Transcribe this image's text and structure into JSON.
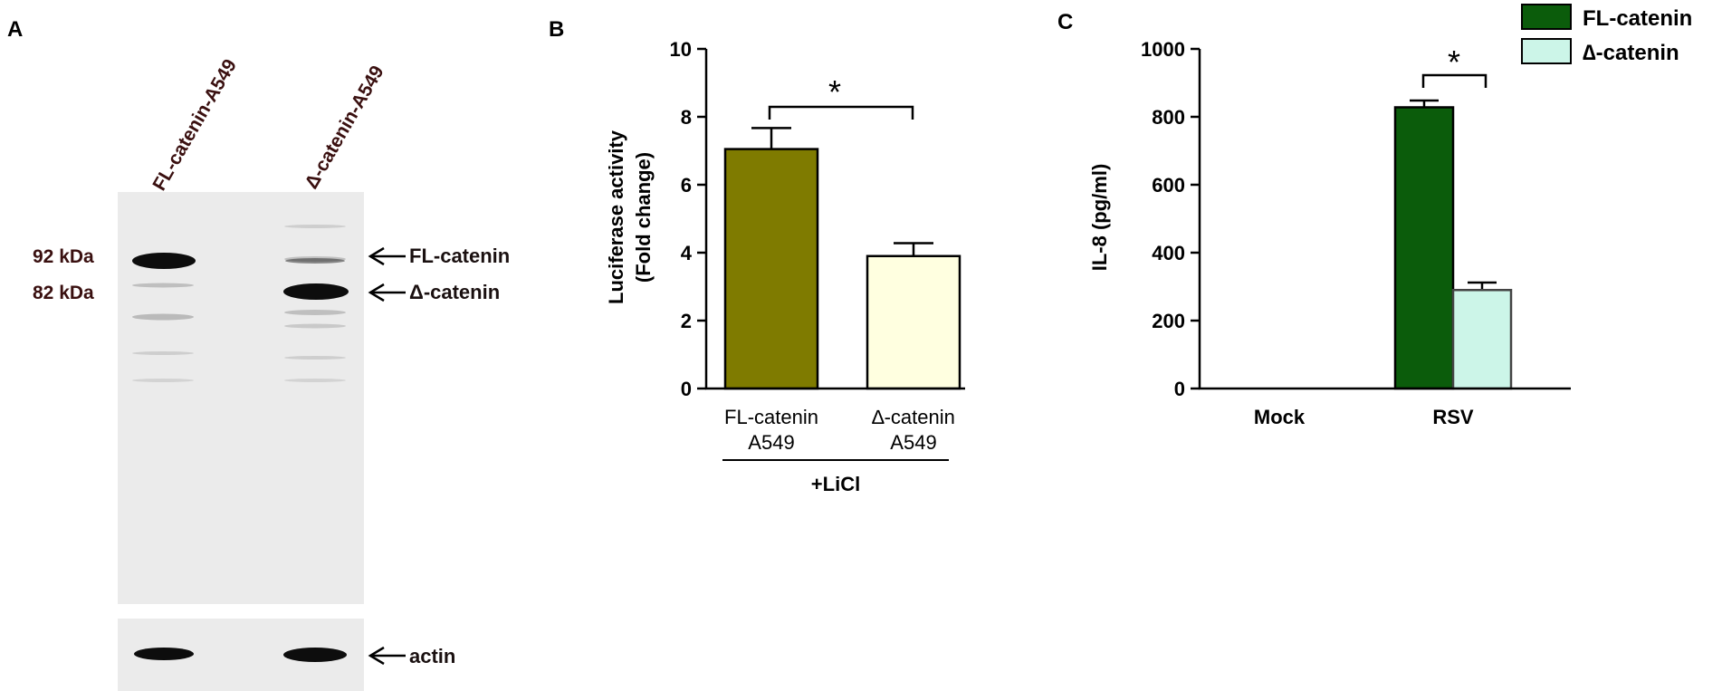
{
  "panel_labels": {
    "a": "A",
    "b": "B",
    "c": "C"
  },
  "western_blot": {
    "lane_labels": [
      "FL-catenin-A549",
      "Δ-catenin-A549"
    ],
    "markers": [
      "92 kDa",
      "82 kDa"
    ],
    "band_labels": [
      "FL-catenin",
      "Δ-catenin"
    ],
    "loading_control_label": "actin",
    "colors": {
      "membrane": "#ececec",
      "band": "#0d0d0d",
      "label": "#3a1010"
    }
  },
  "chart_data": [
    {
      "type": "bar",
      "categories": [
        [
          "FL-catenin",
          "A549"
        ],
        [
          "∆-catenin",
          "A549"
        ]
      ],
      "values": [
        7.05,
        3.9
      ],
      "errors": [
        0.62,
        0.38
      ],
      "bar_colors": [
        "#7f7b00",
        "#ffffe0"
      ],
      "ylabel": [
        "Luciferase activity",
        "(Fold change)"
      ],
      "ylim": [
        0,
        10
      ],
      "yticks": [
        0,
        2,
        4,
        6,
        8,
        10
      ],
      "group_label": "+LiCl",
      "significance": "*",
      "grid": false
    },
    {
      "type": "bar",
      "categories": [
        "Mock",
        "RSV"
      ],
      "series": [
        {
          "name": "FL-catenin",
          "values": [
            0,
            828
          ],
          "errors": [
            0,
            20
          ],
          "color": "#0b5c0b"
        },
        {
          "name": "∆-catenin",
          "values": [
            0,
            290
          ],
          "errors": [
            0,
            22
          ],
          "color": "#ccf5e8"
        }
      ],
      "ylabel": "IL-8 (pg/ml)",
      "ylim": [
        0,
        1000
      ],
      "yticks": [
        0,
        200,
        400,
        600,
        800,
        1000
      ],
      "significance": "*",
      "legend_position": "top-right",
      "grid": false
    }
  ]
}
